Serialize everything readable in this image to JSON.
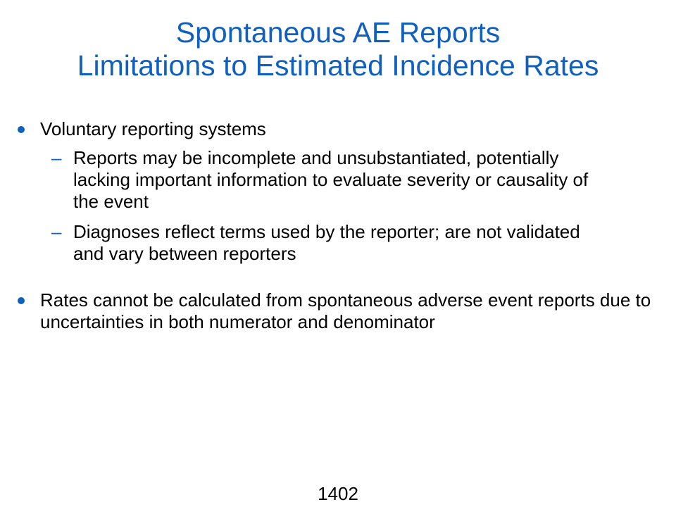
{
  "slide": {
    "title_line1": "Spontaneous AE Reports",
    "title_line2": "Limitations to Estimated Incidence Rates",
    "bullets": [
      {
        "text": "Voluntary reporting systems",
        "sub_items": [
          {
            "dash": "–",
            "text": "Reports may be incomplete and unsubstantiated, potentially lacking important information to evaluate severity or causality of the event"
          },
          {
            "dash": "–",
            "text": "Diagnoses reflect terms used by the reporter; are not validated and vary between reporters"
          }
        ]
      },
      {
        "text": "Rates cannot be calculated from spontaneous adverse event reports due to uncertainties in both numerator and denominator"
      }
    ],
    "page_number": "1402"
  },
  "colors": {
    "title": "#1060c0",
    "bullet_marker": "#1060c0",
    "body_text": "#000000",
    "background": "#ffffff"
  }
}
